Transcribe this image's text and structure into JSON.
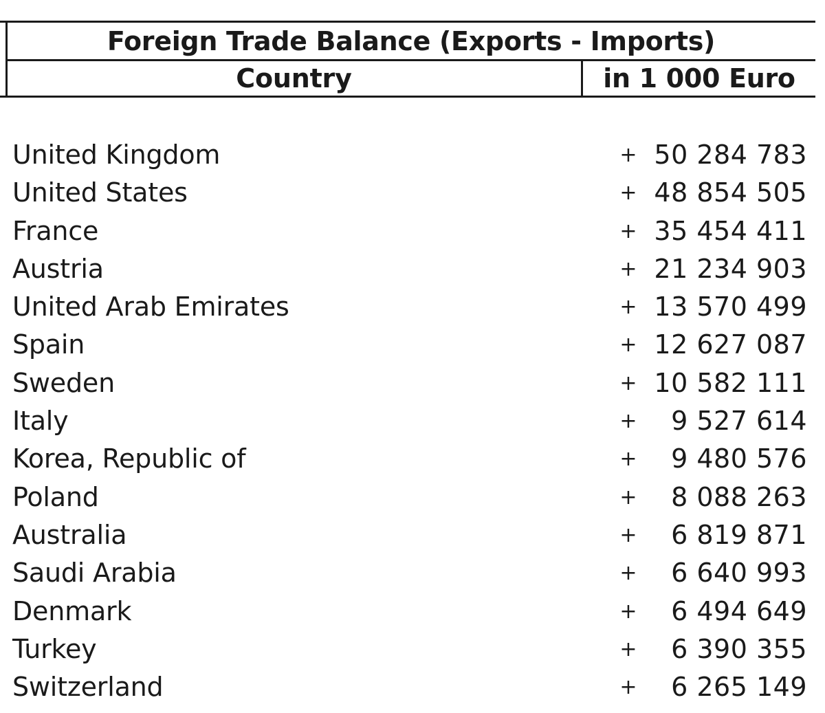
{
  "table": {
    "title": "Foreign Trade Balance (Exports - Imports)",
    "columns": {
      "country": "Country",
      "value": "in 1 000 Euro"
    },
    "rows": [
      {
        "country": "United Kingdom",
        "sign": "+",
        "value": "50 284 783"
      },
      {
        "country": "United States",
        "sign": "+",
        "value": "48 854 505"
      },
      {
        "country": "France",
        "sign": "+",
        "value": "35 454 411"
      },
      {
        "country": "Austria",
        "sign": "+",
        "value": "21 234 903"
      },
      {
        "country": "United Arab Emirates",
        "sign": "+",
        "value": "13 570 499"
      },
      {
        "country": "Spain",
        "sign": "+",
        "value": "12 627 087"
      },
      {
        "country": "Sweden",
        "sign": "+",
        "value": "10 582 111"
      },
      {
        "country": "Italy",
        "sign": "+",
        "value": "9 527 614"
      },
      {
        "country": "Korea, Republic of",
        "sign": "+",
        "value": "9 480 576"
      },
      {
        "country": "Poland",
        "sign": "+",
        "value": "8 088 263"
      },
      {
        "country": "Australia",
        "sign": "+",
        "value": "6 819 871"
      },
      {
        "country": "Saudi Arabia",
        "sign": "+",
        "value": "6 640 993"
      },
      {
        "country": "Denmark",
        "sign": "+",
        "value": "6 494 649"
      },
      {
        "country": "Turkey",
        "sign": "+",
        "value": "6 390 355"
      },
      {
        "country": "Switzerland",
        "sign": "+",
        "value": "6 265 149"
      }
    ]
  }
}
